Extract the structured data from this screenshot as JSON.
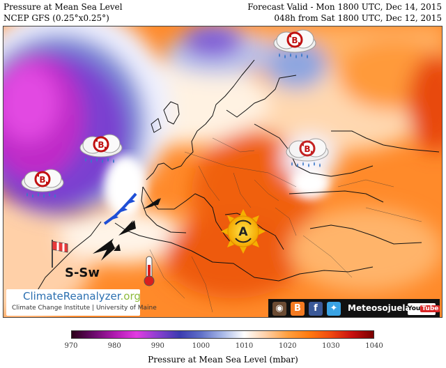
{
  "header": {
    "title_left_1": "Pressure at Mean Sea Level",
    "title_left_2": "NCEP GFS (0.25°x0.25°)",
    "title_right_1": "Forecast Valid - Mon 1800 UTC, Dec 14, 2015",
    "title_right_2": "048h from Sat 1800 UTC, Dec 12, 2015"
  },
  "map": {
    "pressure_systems": [
      {
        "label": "B",
        "kind": "low"
      },
      {
        "label": "B",
        "kind": "low"
      },
      {
        "label": "B",
        "kind": "low"
      },
      {
        "label": "B",
        "kind": "low"
      },
      {
        "label": "A",
        "kind": "high"
      }
    ],
    "wind_label": "S-Sw",
    "icons": [
      "low-pressure-icon",
      "high-pressure-icon",
      "windsock-icon",
      "thermometer-icon",
      "wind-arrow-icon",
      "warm-front-icon"
    ]
  },
  "branding": {
    "brand_main": "ClimateReanalyzer",
    "brand_suffix": ".org",
    "institute": "Climate Change Institute | University of Maine",
    "social_name": "Meteosojuela",
    "youtube": "You",
    "youtube_tube": "Tube",
    "facebook": "f",
    "blogger": "B"
  },
  "colorbar": {
    "title": "Pressure at Mean Sea Level (mbar)",
    "ticks": [
      "970",
      "980",
      "990",
      "1000",
      "1010",
      "1020",
      "1030",
      "1040"
    ],
    "min": 970,
    "max": 1040,
    "colors": [
      "#2a0018",
      "#6a0a6a",
      "#b01ab0",
      "#e23be2",
      "#8a3fd0",
      "#3b3bb0",
      "#6070c8",
      "#a8b8e8",
      "#ffffff",
      "#ffd0a8",
      "#ffa040",
      "#ff7a10",
      "#f04a10",
      "#c81010",
      "#7a0000"
    ]
  }
}
